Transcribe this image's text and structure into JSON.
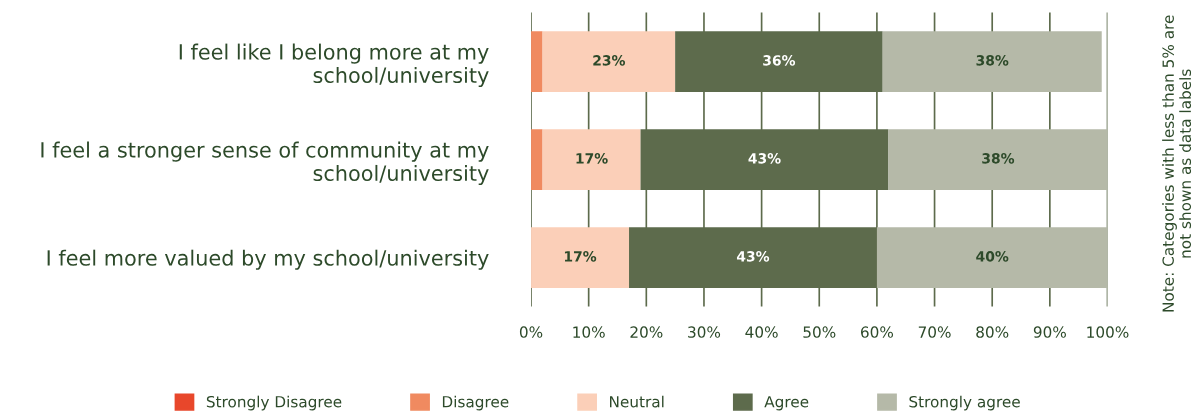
{
  "chart_data": {
    "type": "bar",
    "orientation": "horizontal",
    "stacked": true,
    "categories": [
      "I feel like I belong more at my school/university",
      "I feel a stronger sense of community at my school/university",
      "I feel more valued by my school/university"
    ],
    "series": [
      {
        "name": "Strongly Disagree",
        "color": "#e8472b",
        "values": [
          0,
          0,
          0
        ],
        "value_labels": [
          null,
          null,
          null
        ]
      },
      {
        "name": "Disagree",
        "color": "#f08a60",
        "values": [
          2,
          2,
          0
        ],
        "value_labels": [
          null,
          null,
          null
        ]
      },
      {
        "name": "Neutral",
        "color": "#fbcfb8",
        "values": [
          23,
          17,
          17
        ],
        "value_labels": [
          "23%",
          "17%",
          "17%"
        ]
      },
      {
        "name": "Agree",
        "color": "#5d6b4c",
        "values": [
          36,
          43,
          43
        ],
        "value_labels": [
          "36%",
          "43%",
          "43%"
        ]
      },
      {
        "name": "Strongly agree",
        "color": "#b5b9a8",
        "values": [
          38,
          38,
          40
        ],
        "value_labels": [
          "38%",
          "38%",
          "40%"
        ]
      }
    ],
    "xlim": [
      0,
      100
    ],
    "xticks": [
      {
        "value": 0,
        "label": "0%"
      },
      {
        "value": 10,
        "label": "10%"
      },
      {
        "value": 20,
        "label": "20%"
      },
      {
        "value": 30,
        "label": "30%"
      },
      {
        "value": 40,
        "label": "40%"
      },
      {
        "value": 50,
        "label": "50%"
      },
      {
        "value": 60,
        "label": "60%"
      },
      {
        "value": 70,
        "label": "70%"
      },
      {
        "value": 80,
        "label": "80%"
      },
      {
        "value": 90,
        "label": "90%"
      },
      {
        "value": 100,
        "label": "100%"
      }
    ],
    "grid": "x",
    "legend": "bottom",
    "annotations": [
      "Note: Categories with less than 5% are not shown as data labels"
    ]
  }
}
